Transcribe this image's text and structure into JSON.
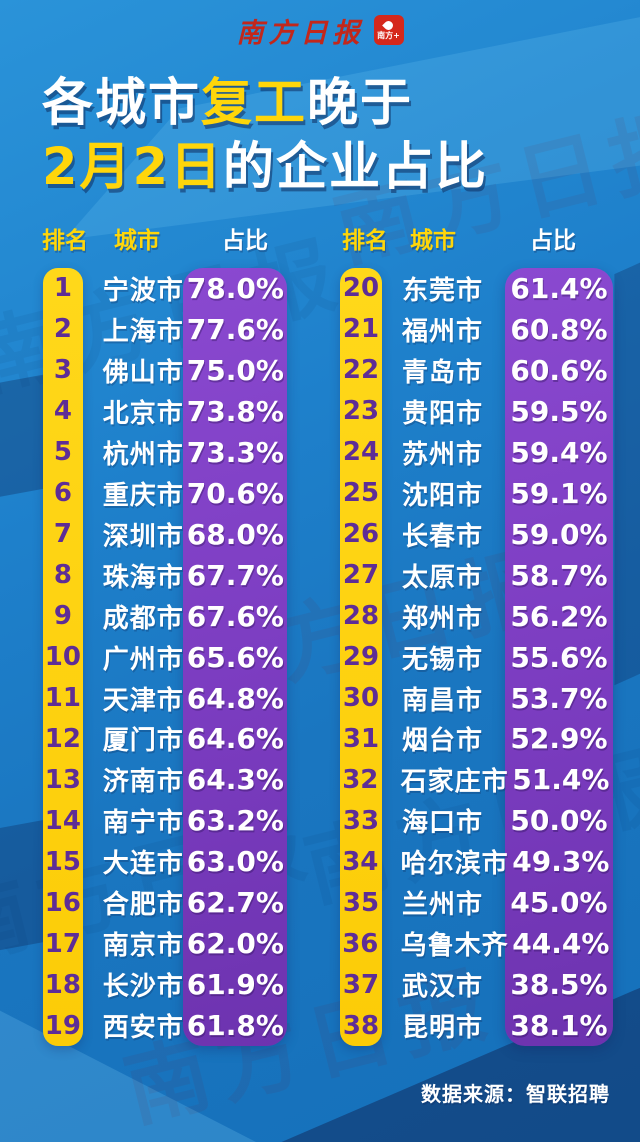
{
  "masthead": {
    "brand": "南方日报",
    "logo_badge": "南方+"
  },
  "title": {
    "line1": [
      {
        "text": "各城市"
      },
      {
        "text": "复工"
      },
      {
        "text": "晚于"
      }
    ],
    "line2": [
      {
        "text": "2月2日"
      },
      {
        "text": "的企业占比"
      }
    ],
    "full": "各城市复工晚于2月2日的企业占比"
  },
  "headers": {
    "rank": "排名",
    "city": "城市",
    "share": "占比"
  },
  "watermark": {
    "text": "南方日报"
  },
  "table": {
    "left": {
      "rows": [
        {
          "rank": "1",
          "city": "宁波市",
          "value": "78.0%"
        },
        {
          "rank": "2",
          "city": "上海市",
          "value": "77.6%"
        },
        {
          "rank": "3",
          "city": "佛山市",
          "value": "75.0%"
        },
        {
          "rank": "4",
          "city": "北京市",
          "value": "73.8%"
        },
        {
          "rank": "5",
          "city": "杭州市",
          "value": "73.3%"
        },
        {
          "rank": "6",
          "city": "重庆市",
          "value": "70.6%"
        },
        {
          "rank": "7",
          "city": "深圳市",
          "value": "68.0%"
        },
        {
          "rank": "8",
          "city": "珠海市",
          "value": "67.7%"
        },
        {
          "rank": "9",
          "city": "成都市",
          "value": "67.6%"
        },
        {
          "rank": "10",
          "city": "广州市",
          "value": "65.6%"
        },
        {
          "rank": "11",
          "city": "天津市",
          "value": "64.8%"
        },
        {
          "rank": "12",
          "city": "厦门市",
          "value": "64.6%"
        },
        {
          "rank": "13",
          "city": "济南市",
          "value": "64.3%"
        },
        {
          "rank": "14",
          "city": "南宁市",
          "value": "63.2%"
        },
        {
          "rank": "15",
          "city": "大连市",
          "value": "63.0%"
        },
        {
          "rank": "16",
          "city": "合肥市",
          "value": "62.7%"
        },
        {
          "rank": "17",
          "city": "南京市",
          "value": "62.0%"
        },
        {
          "rank": "18",
          "city": "长沙市",
          "value": "61.9%"
        },
        {
          "rank": "19",
          "city": "西安市",
          "value": "61.8%"
        }
      ]
    },
    "right": {
      "rows": [
        {
          "rank": "20",
          "city": "东莞市",
          "value": "61.4%"
        },
        {
          "rank": "21",
          "city": "福州市",
          "value": "60.8%"
        },
        {
          "rank": "22",
          "city": "青岛市",
          "value": "60.6%"
        },
        {
          "rank": "23",
          "city": "贵阳市",
          "value": "59.5%"
        },
        {
          "rank": "24",
          "city": "苏州市",
          "value": "59.4%"
        },
        {
          "rank": "25",
          "city": "沈阳市",
          "value": "59.1%"
        },
        {
          "rank": "26",
          "city": "长春市",
          "value": "59.0%"
        },
        {
          "rank": "27",
          "city": "太原市",
          "value": "58.7%"
        },
        {
          "rank": "28",
          "city": "郑州市",
          "value": "56.2%"
        },
        {
          "rank": "29",
          "city": "无锡市",
          "value": "55.6%"
        },
        {
          "rank": "30",
          "city": "南昌市",
          "value": "53.7%"
        },
        {
          "rank": "31",
          "city": "烟台市",
          "value": "52.9%"
        },
        {
          "rank": "32",
          "city": "石家庄市",
          "value": "51.4%"
        },
        {
          "rank": "33",
          "city": "海口市",
          "value": "50.0%"
        },
        {
          "rank": "34",
          "city": "哈尔滨市",
          "value": "49.3%"
        },
        {
          "rank": "35",
          "city": "兰州市",
          "value": "45.0%"
        },
        {
          "rank": "36",
          "city": "乌鲁木齐",
          "value": "44.4%"
        },
        {
          "rank": "37",
          "city": "武汉市",
          "value": "38.5%"
        },
        {
          "rank": "38",
          "city": "昆明市",
          "value": "38.1%"
        }
      ]
    }
  },
  "footer": {
    "source": "数据来源：智联招聘"
  },
  "colors": {
    "background_blue": "#1b7cc7",
    "accent_yellow": "#ffd60a",
    "strip_yellow": "#fccc07",
    "strip_purple": "#7b3cc0",
    "rank_text_purple": "#5e2d96",
    "brand_red": "#c2271b",
    "text_white": "#ffffff"
  },
  "chart_data": {
    "type": "table",
    "title": "各城市复工晚于2月2日的企业占比",
    "columns": [
      "排名",
      "城市",
      "占比(%)"
    ],
    "unit": "%",
    "source": "数据来源：智联招聘",
    "rows": [
      [
        1,
        "宁波市",
        78.0
      ],
      [
        2,
        "上海市",
        77.6
      ],
      [
        3,
        "佛山市",
        75.0
      ],
      [
        4,
        "北京市",
        73.8
      ],
      [
        5,
        "杭州市",
        73.3
      ],
      [
        6,
        "重庆市",
        70.6
      ],
      [
        7,
        "深圳市",
        68.0
      ],
      [
        8,
        "珠海市",
        67.7
      ],
      [
        9,
        "成都市",
        67.6
      ],
      [
        10,
        "广州市",
        65.6
      ],
      [
        11,
        "天津市",
        64.8
      ],
      [
        12,
        "厦门市",
        64.6
      ],
      [
        13,
        "济南市",
        64.3
      ],
      [
        14,
        "南宁市",
        63.2
      ],
      [
        15,
        "大连市",
        63.0
      ],
      [
        16,
        "合肥市",
        62.7
      ],
      [
        17,
        "南京市",
        62.0
      ],
      [
        18,
        "长沙市",
        61.9
      ],
      [
        19,
        "西安市",
        61.8
      ],
      [
        20,
        "东莞市",
        61.4
      ],
      [
        21,
        "福州市",
        60.8
      ],
      [
        22,
        "青岛市",
        60.6
      ],
      [
        23,
        "贵阳市",
        59.5
      ],
      [
        24,
        "苏州市",
        59.4
      ],
      [
        25,
        "沈阳市",
        59.1
      ],
      [
        26,
        "长春市",
        59.0
      ],
      [
        27,
        "太原市",
        58.7
      ],
      [
        28,
        "郑州市",
        56.2
      ],
      [
        29,
        "无锡市",
        55.6
      ],
      [
        30,
        "南昌市",
        53.7
      ],
      [
        31,
        "烟台市",
        52.9
      ],
      [
        32,
        "石家庄市",
        51.4
      ],
      [
        33,
        "海口市",
        50.0
      ],
      [
        34,
        "哈尔滨市",
        49.3
      ],
      [
        35,
        "兰州市",
        45.0
      ],
      [
        36,
        "乌鲁木齐",
        44.4
      ],
      [
        37,
        "武汉市",
        38.5
      ],
      [
        38,
        "昆明市",
        38.1
      ]
    ]
  }
}
